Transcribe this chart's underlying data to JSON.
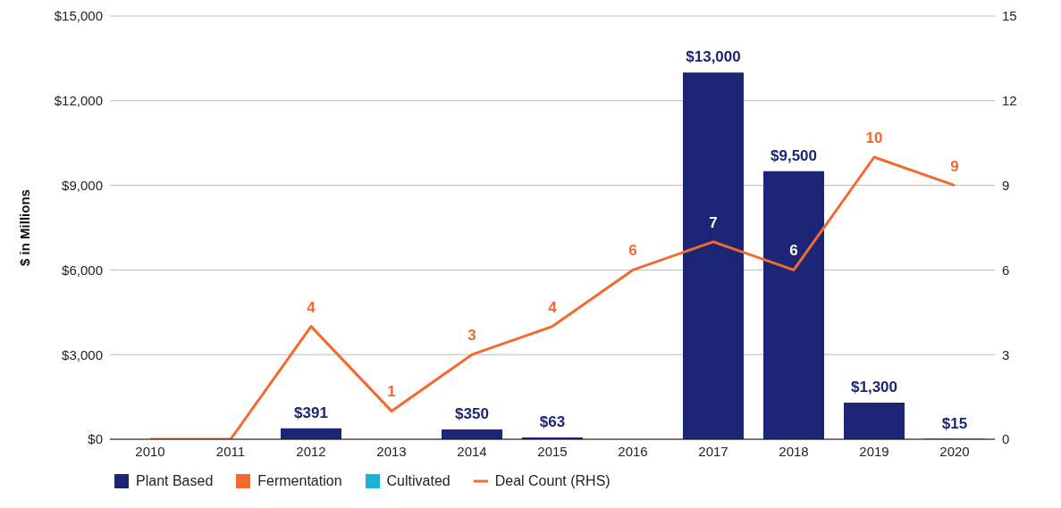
{
  "chart_data": {
    "type": "bar",
    "categories": [
      "2010",
      "2011",
      "2012",
      "2013",
      "2014",
      "2015",
      "2016",
      "2017",
      "2018",
      "2019",
      "2020"
    ],
    "series": [
      {
        "name": "Plant Based",
        "color": "#1d2576",
        "values": [
          0,
          0,
          391,
          0,
          350,
          63,
          0,
          13000,
          9500,
          1300,
          15
        ],
        "value_labels": [
          null,
          null,
          "$391",
          null,
          "$350",
          "$63",
          null,
          "$13,000",
          "$9,500",
          "$1,300",
          "$15"
        ]
      },
      {
        "name": "Fermentation",
        "color": "#f26a2e",
        "values": [
          null,
          null,
          null,
          null,
          null,
          null,
          null,
          null,
          null,
          null,
          null
        ]
      },
      {
        "name": "Cultivated",
        "color": "#1bb3d1",
        "values": [
          null,
          null,
          null,
          null,
          null,
          null,
          null,
          null,
          null,
          null,
          null
        ]
      },
      {
        "name": "Deal Count (RHS)",
        "type": "line",
        "axis": "y2",
        "color": "#f26a2e",
        "values": [
          0,
          0,
          4,
          1,
          3,
          4,
          6,
          7,
          6,
          10,
          9
        ],
        "value_labels": [
          null,
          null,
          "4",
          "1",
          "3",
          "4",
          "6",
          "7",
          "6",
          "10",
          "9"
        ]
      }
    ],
    "ylabel": "$ in Millions",
    "ylim": [
      0,
      15000
    ],
    "yticks": [
      {
        "value": 0,
        "label": "$0"
      },
      {
        "value": 3000,
        "label": "$3,000"
      },
      {
        "value": 6000,
        "label": "$6,000"
      },
      {
        "value": 9000,
        "label": "$9,000"
      },
      {
        "value": 12000,
        "label": "$12,000"
      },
      {
        "value": 15000,
        "label": "$15,000"
      }
    ],
    "y2lim": [
      0,
      15
    ],
    "y2ticks": [
      0,
      3,
      6,
      9,
      12,
      15
    ],
    "grid": "y",
    "legend": "bottom left",
    "marker": "none",
    "line_style": "solid"
  }
}
